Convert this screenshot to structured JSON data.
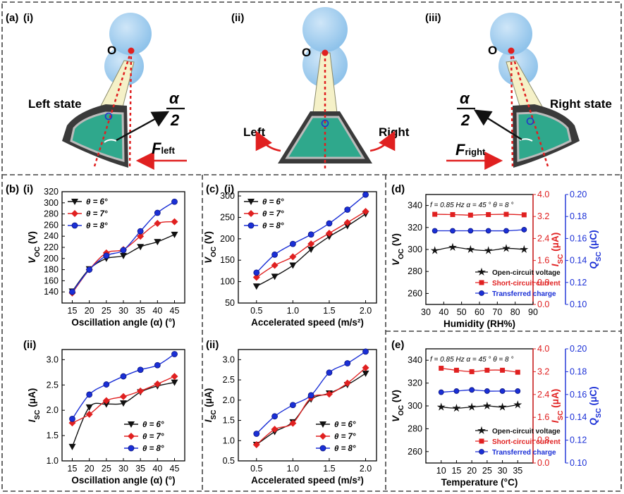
{
  "colors": {
    "black": "#111111",
    "red": "#e02020",
    "blue": "#1a2fd6",
    "frame": "#444444"
  },
  "top": {
    "panel_label": "(a)",
    "sub": [
      "(i)",
      "(ii)",
      "(iii)"
    ],
    "pivot": "O",
    "left_state": "Left state",
    "right_state": "Right state",
    "alpha": "α",
    "two": "2",
    "left": "Left",
    "right": "Right",
    "f_left": "F",
    "f_left_sub": "left",
    "f_right": "F",
    "f_right_sub": "right"
  },
  "labels": {
    "b": "(b)",
    "b_i": "(i)",
    "b_ii": "(ii)",
    "c": "(c)",
    "c_i": "(i)",
    "c_ii": "(ii)",
    "d": "(d)",
    "e": "(e)"
  },
  "axes": {
    "osc_x": "Oscillation angle (α) (°)",
    "acc_x": "Accelerated speed (m/s²)",
    "voc": "V",
    "voc_sub": "OC",
    "voc_unit": " (V)",
    "isc": "I",
    "isc_sub": "SC",
    "isc_unit": " (μA)",
    "qsc": "Q",
    "qsc_sub": "SC",
    "qsc_unit": " (μC)",
    "humidity": "Humidity (RH%)",
    "temperature": "Temperature  (°C)"
  },
  "conditions": {
    "f": "f = 0.85 Hz",
    "alpha": "α = 45 °",
    "theta": "θ = 8 °"
  },
  "chart_data": [
    {
      "id": "b-i",
      "type": "line",
      "xlabel": "Oscillation angle (α) (°)",
      "ylabel": "VOC (V)",
      "x": [
        15,
        20,
        25,
        30,
        35,
        40,
        45
      ],
      "xlim": [
        12,
        48
      ],
      "ylim": [
        120,
        320
      ],
      "xticks": [
        15,
        20,
        25,
        30,
        35,
        40,
        45
      ],
      "yticks": [
        140,
        160,
        180,
        200,
        220,
        240,
        260,
        280,
        300,
        320
      ],
      "legend": "top-left",
      "series": [
        {
          "name": "θ = 6°",
          "color": "#111111",
          "marker": "tri-down",
          "values": [
            141,
            181,
            200,
            205,
            221,
            230,
            243
          ]
        },
        {
          "name": "θ = 7°",
          "color": "#e02020",
          "marker": "diamond",
          "values": [
            138,
            180,
            210,
            216,
            240,
            263,
            266
          ]
        },
        {
          "name": "θ = 8°",
          "color": "#1a2fd6",
          "marker": "circle",
          "values": [
            140,
            180,
            205,
            215,
            249,
            282,
            302
          ]
        }
      ]
    },
    {
      "id": "b-ii",
      "type": "line",
      "xlabel": "Oscillation angle (α) (°)",
      "ylabel": "ISC (μA)",
      "x": [
        15,
        20,
        25,
        30,
        35,
        40,
        45
      ],
      "xlim": [
        12,
        48
      ],
      "ylim": [
        1.0,
        3.2
      ],
      "xticks": [
        15,
        20,
        25,
        30,
        35,
        40,
        45
      ],
      "yticks": [
        1.0,
        1.5,
        2.0,
        2.5,
        3.0
      ],
      "legend": "bottom-right",
      "series": [
        {
          "name": "θ = 6°",
          "color": "#111111",
          "marker": "tri-down",
          "values": [
            1.28,
            2.06,
            2.12,
            2.14,
            2.36,
            2.48,
            2.55
          ]
        },
        {
          "name": "θ = 7°",
          "color": "#e02020",
          "marker": "diamond",
          "values": [
            1.75,
            1.92,
            2.19,
            2.27,
            2.38,
            2.52,
            2.67
          ]
        },
        {
          "name": "θ = 8°",
          "color": "#1a2fd6",
          "marker": "circle",
          "values": [
            1.83,
            2.31,
            2.51,
            2.67,
            2.8,
            2.89,
            3.11
          ]
        }
      ]
    },
    {
      "id": "c-i",
      "type": "line",
      "xlabel": "Accelerated speed (m/s²)",
      "ylabel": "VOC (V)",
      "x": [
        0.5,
        0.75,
        1.0,
        1.25,
        1.5,
        1.75,
        2.0
      ],
      "xlim": [
        0.25,
        2.15
      ],
      "ylim": [
        50,
        310
      ],
      "xticks": [
        0.5,
        1.0,
        1.5,
        2.0
      ],
      "yticks": [
        50,
        100,
        150,
        200,
        250,
        300
      ],
      "legend": "top-left",
      "series": [
        {
          "name": "θ = 6°",
          "color": "#111111",
          "marker": "tri-down",
          "values": [
            89,
            112,
            138,
            175,
            205,
            230,
            258
          ]
        },
        {
          "name": "θ = 7°",
          "color": "#e02020",
          "marker": "diamond",
          "values": [
            110,
            138,
            158,
            188,
            213,
            238,
            264
          ]
        },
        {
          "name": "θ = 8°",
          "color": "#1a2fd6",
          "marker": "circle",
          "values": [
            121,
            163,
            188,
            210,
            236,
            268,
            303
          ]
        }
      ]
    },
    {
      "id": "c-ii",
      "type": "line",
      "xlabel": "Accelerated speed (m/s²)",
      "ylabel": "ISC (μA)",
      "x": [
        0.5,
        0.75,
        1.0,
        1.25,
        1.5,
        1.75,
        2.0
      ],
      "xlim": [
        0.25,
        2.15
      ],
      "ylim": [
        0.5,
        3.25
      ],
      "xticks": [
        0.5,
        1.0,
        1.5,
        2.0
      ],
      "yticks": [
        0.5,
        1.0,
        1.5,
        2.0,
        2.5,
        3.0
      ],
      "legend": "bottom-right",
      "series": [
        {
          "name": "θ = 6°",
          "color": "#111111",
          "marker": "tri-down",
          "values": [
            0.9,
            1.22,
            1.46,
            2.02,
            2.17,
            2.38,
            2.66
          ]
        },
        {
          "name": "θ = 7°",
          "color": "#e02020",
          "marker": "diamond",
          "values": [
            0.9,
            1.28,
            1.43,
            2.06,
            2.15,
            2.42,
            2.8
          ]
        },
        {
          "name": "θ = 8°",
          "color": "#1a2fd6",
          "marker": "circle",
          "values": [
            1.17,
            1.6,
            1.88,
            2.12,
            2.68,
            2.91,
            3.2
          ]
        }
      ]
    },
    {
      "id": "d",
      "type": "line",
      "xlabel": "Humidity (RH%)",
      "x": [
        35,
        45,
        55,
        65,
        75,
        85
      ],
      "xlim": [
        30,
        90
      ],
      "xticks": [
        30,
        40,
        50,
        60,
        70,
        80,
        90
      ],
      "y_left": {
        "label": "VOC (V)",
        "lim": [
          250,
          350
        ],
        "ticks": [
          260,
          280,
          300,
          320,
          340
        ]
      },
      "y_mid": {
        "label": "ISC (μA)",
        "lim": [
          0.0,
          4.0
        ],
        "ticks": [
          0.0,
          0.8,
          1.6,
          2.4,
          3.2,
          4.0
        ]
      },
      "y_right": {
        "label": "QSC (μC)",
        "lim": [
          0.1,
          0.2
        ],
        "ticks": [
          0.1,
          0.12,
          0.14,
          0.16,
          0.18,
          0.2
        ]
      },
      "legend": "bottom-right",
      "series": [
        {
          "name": "Open-circuit voltage",
          "axis": "left",
          "color": "#111111",
          "marker": "star",
          "values": [
            299,
            302,
            300,
            299,
            301,
            300
          ]
        },
        {
          "name": "Short-circuit current",
          "axis": "mid",
          "color": "#e02020",
          "marker": "square",
          "values": [
            3.28,
            3.27,
            3.25,
            3.27,
            3.28,
            3.26
          ]
        },
        {
          "name": "Transferred charge",
          "axis": "right",
          "color": "#1a2fd6",
          "marker": "circle",
          "values": [
            0.167,
            0.167,
            0.167,
            0.167,
            0.167,
            0.168
          ]
        }
      ]
    },
    {
      "id": "e",
      "type": "line",
      "xlabel": "Temperature  (°C)",
      "x": [
        10,
        15,
        20,
        25,
        30,
        35
      ],
      "xlim": [
        5,
        40
      ],
      "xticks": [
        10,
        15,
        20,
        25,
        30,
        35
      ],
      "y_left": {
        "label": "VOC (V)",
        "lim": [
          250,
          350
        ],
        "ticks": [
          260,
          280,
          300,
          320,
          340
        ]
      },
      "y_mid": {
        "label": "ISC (μA)",
        "lim": [
          0.0,
          4.0
        ],
        "ticks": [
          0.0,
          0.8,
          1.6,
          2.4,
          3.2,
          4.0
        ]
      },
      "y_right": {
        "label": "QSC (μC)",
        "lim": [
          0.1,
          0.2
        ],
        "ticks": [
          0.1,
          0.12,
          0.14,
          0.16,
          0.18,
          0.2
        ]
      },
      "legend": "bottom-right",
      "series": [
        {
          "name": "Open-circuit voltage",
          "axis": "left",
          "color": "#111111",
          "marker": "star",
          "values": [
            299,
            298,
            299,
            300,
            299,
            301
          ]
        },
        {
          "name": "Short-circuit current",
          "axis": "mid",
          "color": "#e02020",
          "marker": "square",
          "values": [
            3.32,
            3.25,
            3.2,
            3.25,
            3.25,
            3.18
          ]
        },
        {
          "name": "Transferred charge",
          "axis": "right",
          "color": "#1a2fd6",
          "marker": "circle",
          "values": [
            0.162,
            0.163,
            0.164,
            0.163,
            0.163,
            0.163
          ]
        }
      ]
    }
  ]
}
